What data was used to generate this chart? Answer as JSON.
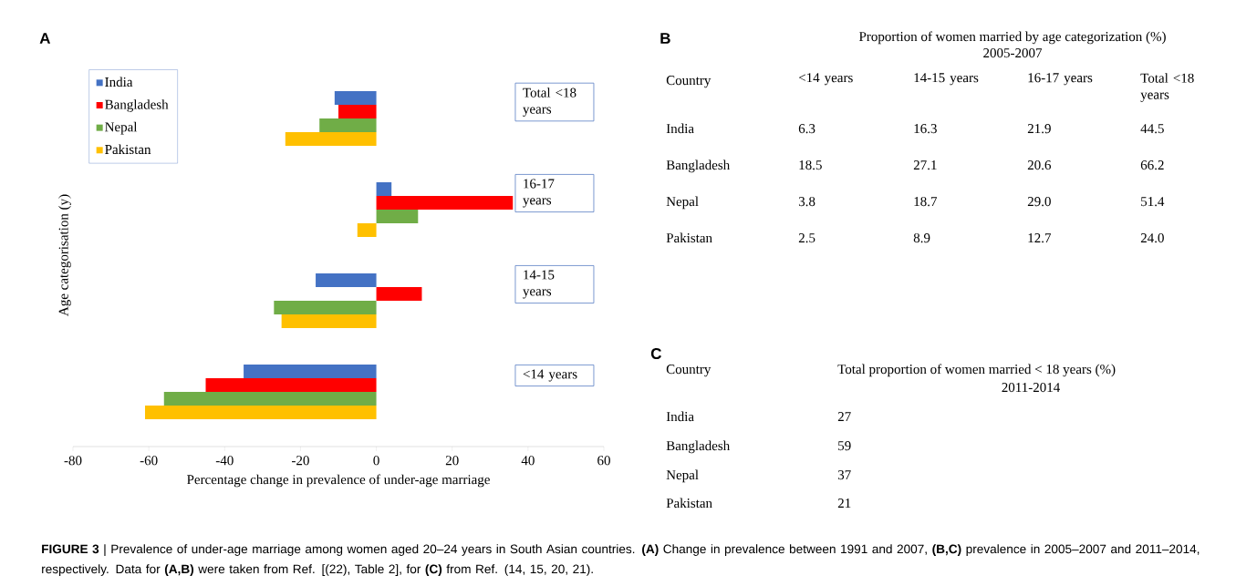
{
  "chart_data": [
    {
      "type": "bar",
      "orientation": "horizontal",
      "xlabel": "Percentage change in prevalence of under-age marriage",
      "ylabel": "Age categorisation (y)",
      "categories": [
        "Total <18 years",
        "16-17 years",
        "14-15 years",
        "<14 years"
      ],
      "series": [
        {
          "name": "India",
          "color": "#4472c4",
          "values": [
            -11,
            4,
            -16,
            -35
          ]
        },
        {
          "name": "Bangladesh",
          "color": "#ff0000",
          "values": [
            -10,
            36,
            12,
            -45
          ]
        },
        {
          "name": "Nepal",
          "color": "#70ad47",
          "values": [
            -15,
            11,
            -27,
            -56
          ]
        },
        {
          "name": "Pakistan",
          "color": "#ffc000",
          "values": [
            -24,
            -5,
            -25,
            -61
          ]
        }
      ],
      "xlim": [
        -80,
        60
      ],
      "xticks": [
        -80,
        -60,
        -40,
        -20,
        0,
        20,
        40,
        60
      ],
      "legend": "top left",
      "grid": false,
      "annotations": [
        "A",
        "**FIGURE 3** | Prevalence of under-age marriage among women aged 20–24 years in South Asian countries. **(A)** Change in prevalence between 1991 and 2007, **(B,C)** prevalence in 2005–2007 and 2011–2014, respectively. Data for **(A,B)** were taken from Ref. [(22), Table 2], for **(C)** from Ref. (14, 15, 20, 21)."
      ]
    },
    {
      "type": "other",
      "title": "Proportion of women married by age categorization (%)",
      "subtitle": "2005-2007",
      "ylabel": "Country",
      "categories": [
        "<14 years",
        "14-15 years",
        "16-17 years",
        "Total <18 years"
      ],
      "y_categories": [
        "India",
        "Bangladesh",
        "Nepal",
        "Pakistan"
      ],
      "cell_labels": [
        [
          "6.3",
          "16.3",
          "21.9",
          "44.5"
        ],
        [
          "18.5",
          "27.1",
          "20.6",
          "66.2"
        ],
        [
          "3.8",
          "18.7",
          "29.0",
          "51.4"
        ],
        [
          "2.5",
          "8.9",
          "12.7",
          "24.0"
        ]
      ],
      "annotations": [
        "B"
      ]
    },
    {
      "type": "other",
      "title": "Total proportion of women married < 18 years (%)",
      "subtitle": "2011-2014",
      "ylabel": "Country",
      "y_categories": [
        "India",
        "Bangladesh",
        "Nepal",
        "Pakistan"
      ],
      "cell_labels": [
        [
          "27"
        ],
        [
          "59"
        ],
        [
          "37"
        ],
        [
          "21"
        ]
      ],
      "annotations": [
        "C"
      ]
    }
  ]
}
